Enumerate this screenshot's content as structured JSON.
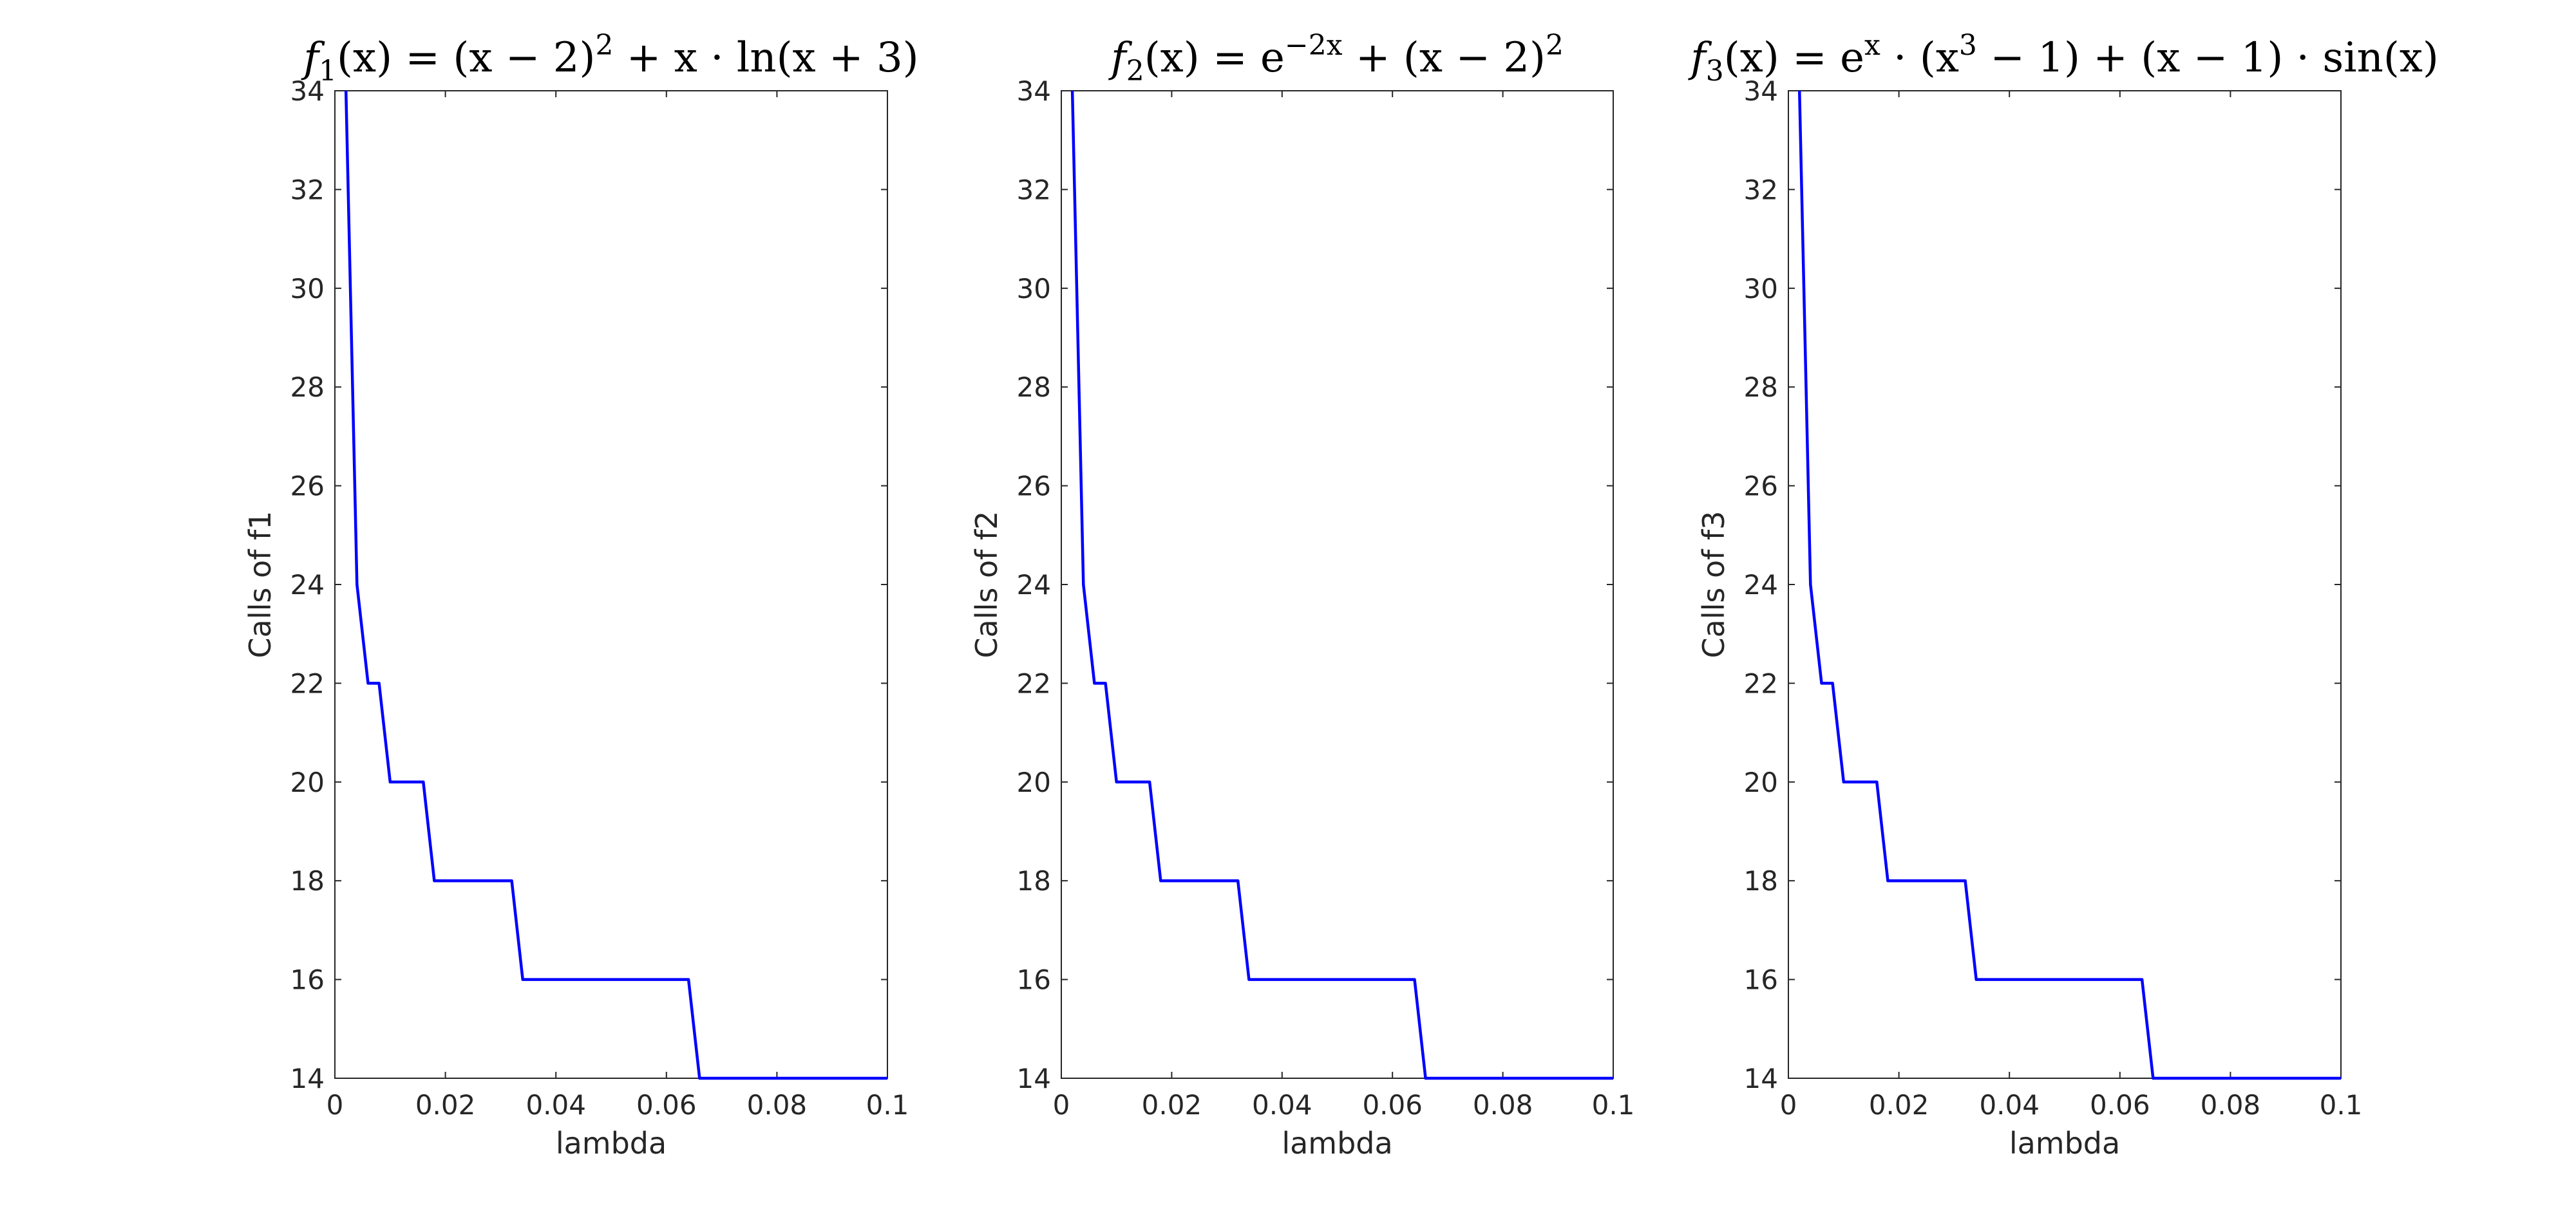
{
  "colors": {
    "series": "#0000ff",
    "axes": "#262626"
  },
  "chart_data": [
    {
      "type": "line",
      "title": {
        "pre": "f",
        "sub": "1",
        "post": "(x) = (x − 2)",
        "sup": "2",
        "rest": " + x · ln(x + 3)"
      },
      "xlabel": "lambda",
      "ylabel": "Calls of f1",
      "xlim": [
        0,
        0.1
      ],
      "ylim": [
        14,
        34
      ],
      "xticks": [
        0,
        0.02,
        0.04,
        0.06,
        0.08,
        0.1
      ],
      "xtick_labels": [
        "0",
        "0.02",
        "0.04",
        "0.06",
        "0.08",
        "0.1"
      ],
      "yticks": [
        14,
        16,
        18,
        20,
        22,
        24,
        26,
        28,
        30,
        32,
        34
      ],
      "yticks_labels": [
        "14",
        "16",
        "18",
        "20",
        "22",
        "24",
        "26",
        "28",
        "30",
        "32",
        "34"
      ],
      "grid": false,
      "series": [
        {
          "x": [
            0.002,
            0.004,
            0.006,
            0.008,
            0.01,
            0.016,
            0.018,
            0.032,
            0.034,
            0.064,
            0.066,
            0.1
          ],
          "y": [
            34,
            24,
            22,
            22,
            20,
            20,
            18,
            18,
            16,
            16,
            14,
            14
          ]
        }
      ]
    },
    {
      "type": "line",
      "title": {
        "pre": "f",
        "sub": "2",
        "post": "(x) = e",
        "sup": "−2x",
        "rest": " + (x − 2)",
        "sup2": "2"
      },
      "xlabel": "lambda",
      "ylabel": "Calls of f2",
      "xlim": [
        0,
        0.1
      ],
      "ylim": [
        14,
        34
      ],
      "xticks": [
        0,
        0.02,
        0.04,
        0.06,
        0.08,
        0.1
      ],
      "xtick_labels": [
        "0",
        "0.02",
        "0.04",
        "0.06",
        "0.08",
        "0.1"
      ],
      "yticks": [
        14,
        16,
        18,
        20,
        22,
        24,
        26,
        28,
        30,
        32,
        34
      ],
      "yticks_labels": [
        "14",
        "16",
        "18",
        "20",
        "22",
        "24",
        "26",
        "28",
        "30",
        "32",
        "34"
      ],
      "grid": false,
      "series": [
        {
          "x": [
            0.002,
            0.004,
            0.006,
            0.008,
            0.01,
            0.016,
            0.018,
            0.032,
            0.034,
            0.064,
            0.066,
            0.1
          ],
          "y": [
            34,
            24,
            22,
            22,
            20,
            20,
            18,
            18,
            16,
            16,
            14,
            14
          ]
        }
      ]
    },
    {
      "type": "line",
      "title": {
        "pre": "f",
        "sub": "3",
        "post": "(x) = e",
        "sup": "x",
        "rest": " · (x",
        "sup2": "3",
        "rest2": " − 1) + (x − 1) · sin(x)"
      },
      "xlabel": "lambda",
      "ylabel": "Calls of f3",
      "xlim": [
        0,
        0.1
      ],
      "ylim": [
        14,
        34
      ],
      "xticks": [
        0,
        0.02,
        0.04,
        0.06,
        0.08,
        0.1
      ],
      "xtick_labels": [
        "0",
        "0.02",
        "0.04",
        "0.06",
        "0.08",
        "0.1"
      ],
      "yticks": [
        14,
        16,
        18,
        20,
        22,
        24,
        26,
        28,
        30,
        32,
        34
      ],
      "yticks_labels": [
        "14",
        "16",
        "18",
        "20",
        "22",
        "24",
        "26",
        "28",
        "30",
        "32",
        "34"
      ],
      "grid": false,
      "series": [
        {
          "x": [
            0.002,
            0.004,
            0.006,
            0.008,
            0.01,
            0.016,
            0.018,
            0.032,
            0.034,
            0.064,
            0.066,
            0.1
          ],
          "y": [
            34,
            24,
            22,
            22,
            20,
            20,
            18,
            18,
            16,
            16,
            14,
            14
          ]
        }
      ]
    }
  ]
}
